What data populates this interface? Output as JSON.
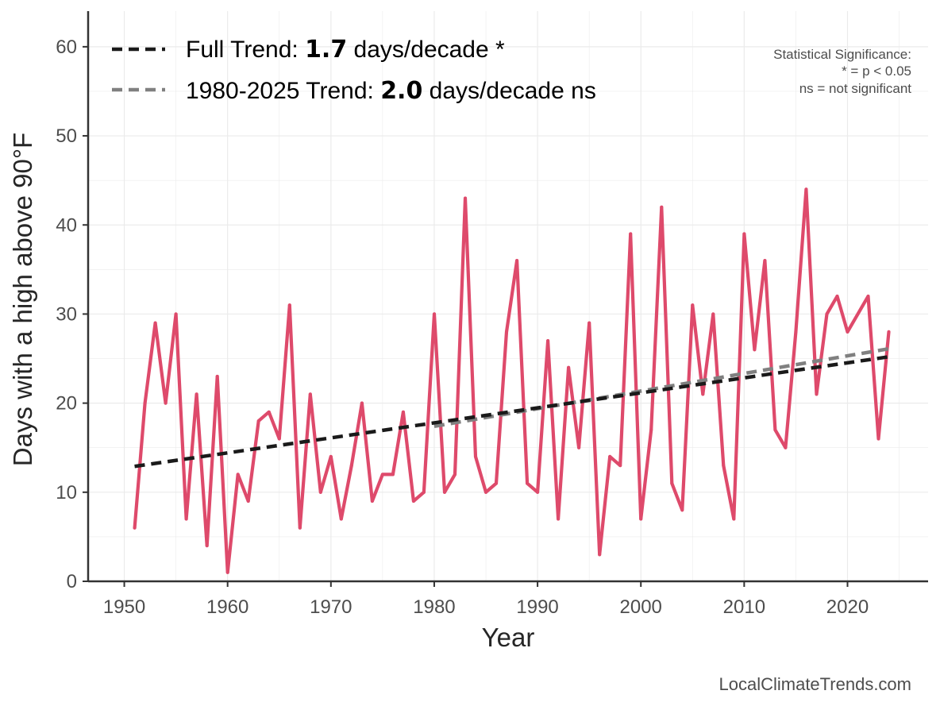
{
  "chart_data": {
    "type": "line",
    "title": "",
    "xlabel": "Year",
    "ylabel": "Days with a high above 90°F",
    "xlim": [
      1946.5,
      2027.8
    ],
    "ylim": [
      0,
      64
    ],
    "xticks": [
      1950,
      1960,
      1970,
      1980,
      1990,
      2000,
      2010,
      2020
    ],
    "yticks": [
      0,
      10,
      20,
      30,
      40,
      50,
      60
    ],
    "grid": true,
    "series": [
      {
        "name": "Days above 90°F",
        "color": "#de4a6b",
        "x": [
          1951,
          1952,
          1953,
          1954,
          1955,
          1956,
          1957,
          1958,
          1959,
          1960,
          1961,
          1962,
          1963,
          1964,
          1965,
          1966,
          1967,
          1968,
          1969,
          1970,
          1971,
          1972,
          1973,
          1974,
          1975,
          1976,
          1977,
          1978,
          1979,
          1980,
          1981,
          1982,
          1983,
          1984,
          1985,
          1986,
          1987,
          1988,
          1989,
          1990,
          1991,
          1992,
          1993,
          1994,
          1995,
          1996,
          1997,
          1998,
          1999,
          2000,
          2001,
          2002,
          2003,
          2004,
          2005,
          2006,
          2007,
          2008,
          2009,
          2010,
          2011,
          2012,
          2013,
          2014,
          2015,
          2016,
          2017,
          2018,
          2019,
          2020,
          2022,
          2023,
          2024
        ],
        "values": [
          6,
          20,
          29,
          20,
          30,
          7,
          21,
          4,
          23,
          1,
          12,
          9,
          18,
          19,
          16,
          31,
          6,
          21,
          10,
          14,
          7,
          13,
          20,
          9,
          12,
          12,
          19,
          9,
          10,
          30,
          10,
          12,
          43,
          14,
          10,
          11,
          28,
          36,
          11,
          10,
          27,
          7,
          24,
          15,
          29,
          3,
          14,
          13,
          39,
          7,
          17,
          42,
          11,
          8,
          31,
          21,
          30,
          13,
          7,
          39,
          26,
          36,
          17,
          15,
          28,
          44,
          21,
          30,
          32,
          28,
          32,
          16,
          28
        ]
      }
    ],
    "trendlines": [
      {
        "name": "Full Trend",
        "color": "#1a1a1a",
        "x": [
          1951,
          2024
        ],
        "values": [
          12.9,
          25.2
        ]
      },
      {
        "name": "1980-2025 Trend",
        "color": "#808080",
        "x": [
          1980,
          2024
        ],
        "values": [
          17.4,
          26.1
        ]
      }
    ],
    "legend": {
      "position": "top-left",
      "items": [
        {
          "prefix": "Full Trend: ",
          "bold": "1.7",
          "suffix": " days/decade *",
          "color": "#1a1a1a"
        },
        {
          "prefix": "1980-2025 Trend: ",
          "bold": "2.0",
          "suffix": " days/decade ns",
          "color": "#808080"
        }
      ]
    },
    "annotations": {
      "significance": [
        "Statistical Significance:",
        "* = p < 0.05",
        "ns = not significant"
      ],
      "source": "LocalClimateTrends.com"
    }
  }
}
